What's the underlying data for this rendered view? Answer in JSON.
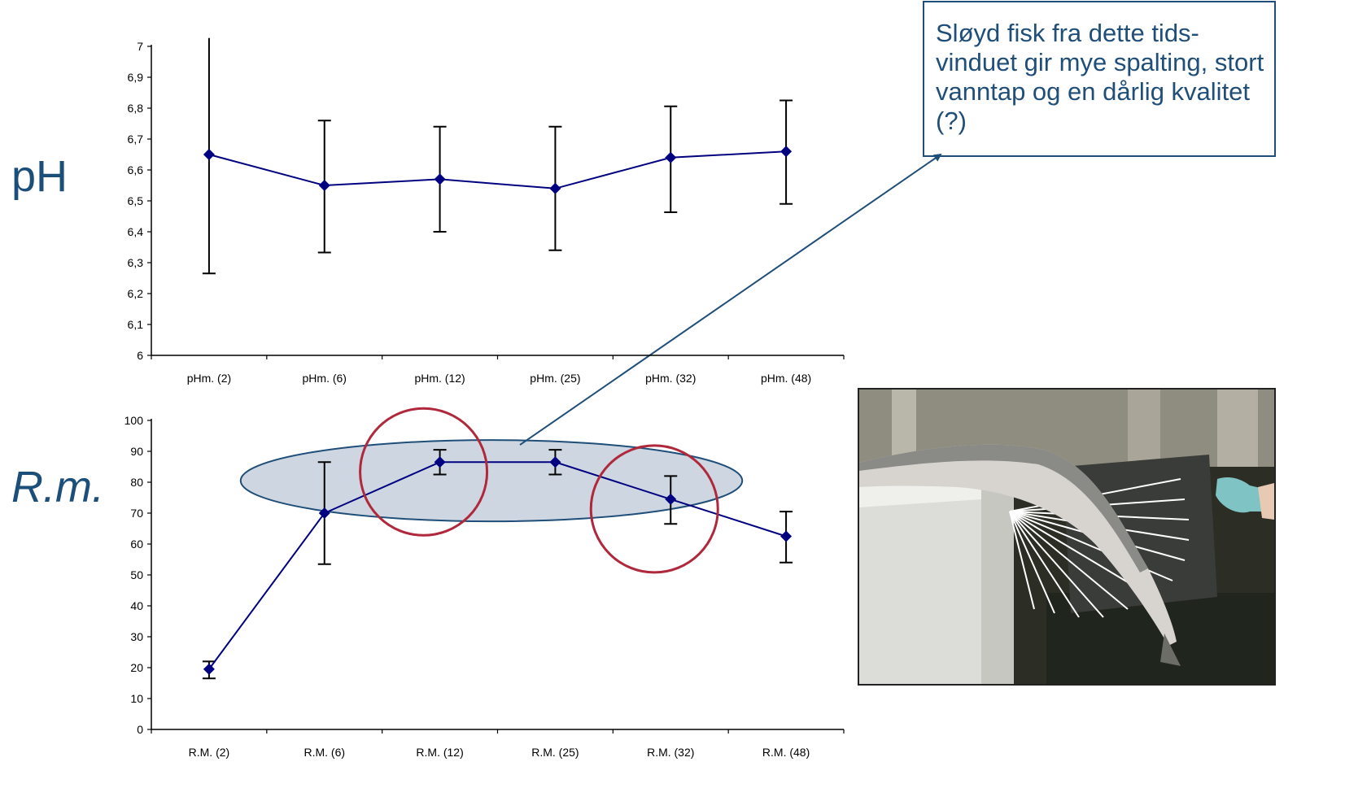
{
  "side_labels": {
    "ph": "pH",
    "rm": "R.m."
  },
  "callout": {
    "text": "Sløyd fisk fra dette tids-vinduet gir mye spalting, stort vanntap og en dårlig kvalitet (?)"
  },
  "photo": {
    "subject": "gutted-salmon-on-rigor-measurement-board"
  },
  "colors": {
    "series_line": "#000080",
    "error_bar": "#000000",
    "highlight_ellipse_fill": "#c5d0dc",
    "highlight_ellipse_stroke": "#1f4e79",
    "highlight_circle": "#b0283c",
    "callout_text": "#1f4e79",
    "side_label": "#1b4f7a"
  },
  "chart_data": [
    {
      "type": "line",
      "categories": [
        "pHm. (2)",
        "pHm. (6)",
        "pHm. (12)",
        "pHm. (25)",
        "pHm. (32)",
        "pHm. (48)"
      ],
      "series": [
        {
          "values": [
            6.65,
            6.55,
            6.57,
            6.54,
            6.64,
            6.66
          ],
          "error_low": [
            6.265,
            6.333,
            6.4,
            6.34,
            6.463,
            6.49
          ],
          "error_high": [
            7.1,
            6.76,
            6.74,
            6.74,
            6.806,
            6.825
          ]
        }
      ],
      "ylim": [
        6,
        7
      ],
      "yticks": [
        "6",
        "6,1",
        "6,2",
        "6,3",
        "6,4",
        "6,5",
        "6,6",
        "6,7",
        "6,8",
        "6,9",
        "7"
      ],
      "ytick_values": [
        6,
        6.1,
        6.2,
        6.3,
        6.4,
        6.5,
        6.6,
        6.7,
        6.8,
        6.9,
        7
      ],
      "grid": false,
      "marker": "diamond"
    },
    {
      "type": "line",
      "categories": [
        "R.M. (2)",
        "R.M. (6)",
        "R.M. (12)",
        "R.M. (25)",
        "R.M. (32)",
        "R.M. (48)"
      ],
      "series": [
        {
          "values": [
            19.5,
            70,
            86.5,
            86.5,
            74.5,
            62.5
          ],
          "error_low": [
            16.5,
            53.5,
            82.5,
            82.5,
            66.5,
            54
          ],
          "error_high": [
            22,
            86.5,
            90.5,
            90.5,
            82,
            70.5
          ]
        }
      ],
      "ylim": [
        0,
        100
      ],
      "yticks": [
        "0",
        "10",
        "20",
        "30",
        "40",
        "50",
        "60",
        "70",
        "80",
        "90",
        "100"
      ],
      "ytick_values": [
        0,
        10,
        20,
        30,
        40,
        50,
        60,
        70,
        80,
        90,
        100
      ],
      "grid": false,
      "marker": "diamond",
      "highlights": {
        "ellipse_span_categories": [
          "R.M. (6)",
          "R.M. (32)"
        ],
        "circled_categories": [
          "R.M. (12)",
          "R.M. (32)"
        ]
      }
    }
  ]
}
